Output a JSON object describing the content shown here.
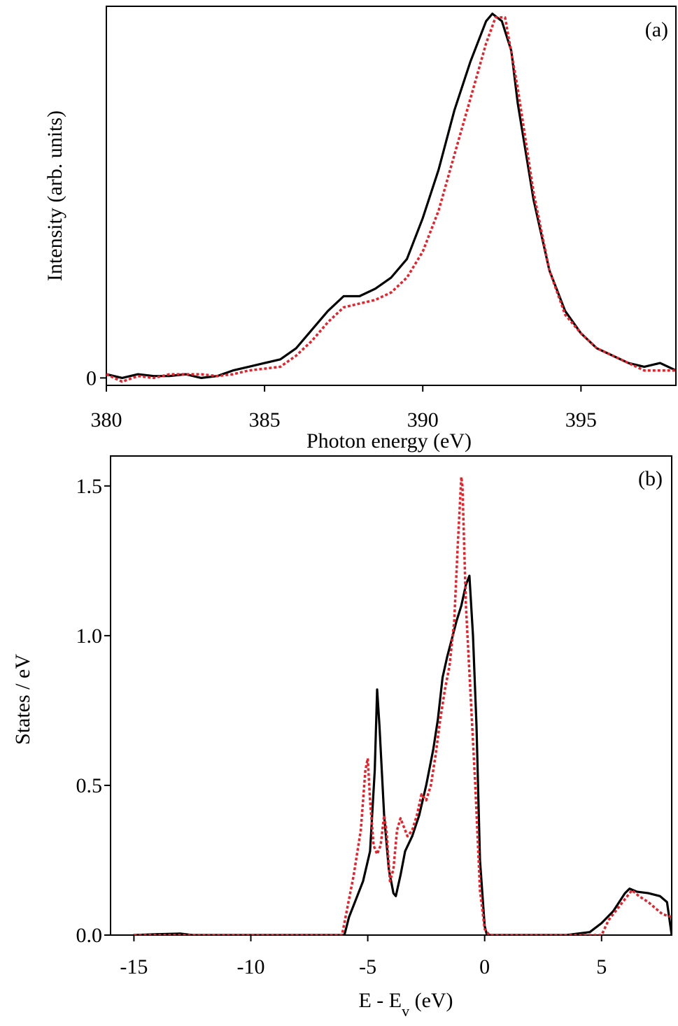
{
  "chart_data": [
    {
      "type": "line",
      "panel_label": "(a)",
      "xlabel": "Photon energy (eV)",
      "ylabel": "Intensity (arb. units)",
      "xlim": [
        380,
        398
      ],
      "ylim": [
        -0.02,
        1.0
      ],
      "xticks": [
        380,
        385,
        390,
        395
      ],
      "yticks": [
        {
          "value": 0,
          "label": "0"
        }
      ],
      "series": [
        {
          "style": "solid",
          "color": "#000000",
          "x": [
            380,
            380.5,
            381,
            381.5,
            382,
            382.5,
            383,
            383.5,
            384,
            384.5,
            385,
            385.5,
            386,
            386.5,
            387,
            387.5,
            387.8,
            388,
            388.5,
            389,
            389.5,
            390,
            390.5,
            391,
            391.5,
            392,
            392.2,
            392.5,
            392.8,
            393,
            393.5,
            394,
            394.5,
            395,
            395.5,
            396,
            396.5,
            397,
            397.5,
            398
          ],
          "y": [
            0.01,
            0.0,
            0.01,
            0.005,
            0.005,
            0.01,
            0.0,
            0.005,
            0.02,
            0.03,
            0.04,
            0.05,
            0.08,
            0.13,
            0.18,
            0.22,
            0.22,
            0.22,
            0.24,
            0.27,
            0.32,
            0.43,
            0.56,
            0.72,
            0.85,
            0.96,
            0.98,
            0.96,
            0.88,
            0.74,
            0.48,
            0.29,
            0.18,
            0.12,
            0.08,
            0.06,
            0.04,
            0.03,
            0.04,
            0.02
          ]
        },
        {
          "style": "dotted",
          "color": "#e8222a",
          "x": [
            380,
            380.5,
            381,
            381.5,
            382,
            382.5,
            383,
            383.5,
            384,
            384.5,
            385,
            385.5,
            386,
            386.5,
            387,
            387.5,
            388,
            388.5,
            389,
            389.5,
            390,
            390.5,
            391,
            391.5,
            392,
            392.3,
            392.6,
            393,
            393.5,
            394,
            394.5,
            395,
            395.5,
            396,
            396.5,
            397,
            397.5,
            398
          ],
          "y": [
            0.01,
            -0.01,
            0.005,
            0.0,
            0.01,
            0.01,
            0.01,
            0.005,
            0.01,
            0.02,
            0.025,
            0.03,
            0.06,
            0.1,
            0.15,
            0.19,
            0.2,
            0.21,
            0.23,
            0.27,
            0.34,
            0.45,
            0.6,
            0.75,
            0.9,
            0.97,
            0.97,
            0.78,
            0.5,
            0.29,
            0.17,
            0.12,
            0.08,
            0.06,
            0.04,
            0.02,
            0.02,
            0.02
          ]
        }
      ]
    },
    {
      "type": "line",
      "panel_label": "(b)",
      "xlabel_main": "E - E",
      "xlabel_sub": "v",
      "xlabel_unit": " (eV)",
      "ylabel": "States / eV",
      "xlim": [
        -16,
        8
      ],
      "ylim": [
        0,
        1.6
      ],
      "xticks": [
        -15,
        -10,
        -5,
        0,
        5
      ],
      "yticks": [
        {
          "value": 0,
          "label": "0.0"
        },
        {
          "value": 0.5,
          "label": "0.5"
        },
        {
          "value": 1.0,
          "label": "1.0"
        },
        {
          "value": 1.5,
          "label": "1.5"
        }
      ],
      "series": [
        {
          "style": "solid",
          "color": "#000000",
          "x": [
            -15,
            -14,
            -13,
            -12.5,
            -6,
            -5.8,
            -5.5,
            -5.2,
            -4.9,
            -4.7,
            -4.6,
            -4.5,
            -4.3,
            -4.1,
            -3.9,
            -3.8,
            -3.6,
            -3.4,
            -3.1,
            -2.8,
            -2.5,
            -2.2,
            -2.0,
            -1.8,
            -1.6,
            -1.4,
            -1.2,
            -1.0,
            -0.8,
            -0.65,
            -0.5,
            -0.35,
            -0.2,
            0.0,
            0.1,
            0.2,
            3.5,
            4.5,
            5.0,
            5.5,
            6.0,
            6.2,
            6.5,
            7.0,
            7.5,
            7.8,
            8.0
          ],
          "y": [
            0.0,
            0.003,
            0.005,
            0.0,
            0.0,
            0.06,
            0.12,
            0.18,
            0.28,
            0.55,
            0.82,
            0.7,
            0.4,
            0.22,
            0.14,
            0.13,
            0.2,
            0.28,
            0.33,
            0.4,
            0.5,
            0.62,
            0.72,
            0.86,
            0.93,
            0.99,
            1.05,
            1.1,
            1.17,
            1.2,
            1.0,
            0.7,
            0.25,
            0.03,
            0.0,
            0.0,
            0.0,
            0.01,
            0.04,
            0.08,
            0.14,
            0.155,
            0.145,
            0.14,
            0.13,
            0.11,
            0.0
          ]
        },
        {
          "style": "dotted",
          "color": "#e8222a",
          "x": [
            -15,
            -6.1,
            -5.9,
            -5.6,
            -5.3,
            -5.1,
            -5.0,
            -4.9,
            -4.75,
            -4.6,
            -4.45,
            -4.3,
            -4.2,
            -4.05,
            -3.9,
            -3.75,
            -3.6,
            -3.45,
            -3.3,
            -3.1,
            -2.9,
            -2.7,
            -2.5,
            -2.3,
            -2.1,
            -1.9,
            -1.7,
            -1.5,
            -1.3,
            -1.15,
            -1.0,
            -0.95,
            -0.8,
            -0.6,
            -0.4,
            -0.2,
            0.0,
            0.2,
            5.0,
            5.3,
            5.6,
            6.0,
            6.3,
            6.6,
            7.0,
            7.3,
            7.6,
            8.0
          ],
          "y": [
            0.0,
            0.0,
            0.08,
            0.2,
            0.35,
            0.55,
            0.59,
            0.45,
            0.3,
            0.27,
            0.3,
            0.4,
            0.35,
            0.18,
            0.22,
            0.35,
            0.39,
            0.36,
            0.33,
            0.35,
            0.4,
            0.47,
            0.45,
            0.5,
            0.6,
            0.72,
            0.82,
            0.9,
            1.05,
            1.3,
            1.53,
            1.5,
            1.1,
            0.8,
            0.5,
            0.15,
            0.02,
            0.0,
            0.0,
            0.05,
            0.08,
            0.12,
            0.15,
            0.13,
            0.11,
            0.09,
            0.07,
            0.06
          ]
        }
      ]
    }
  ]
}
